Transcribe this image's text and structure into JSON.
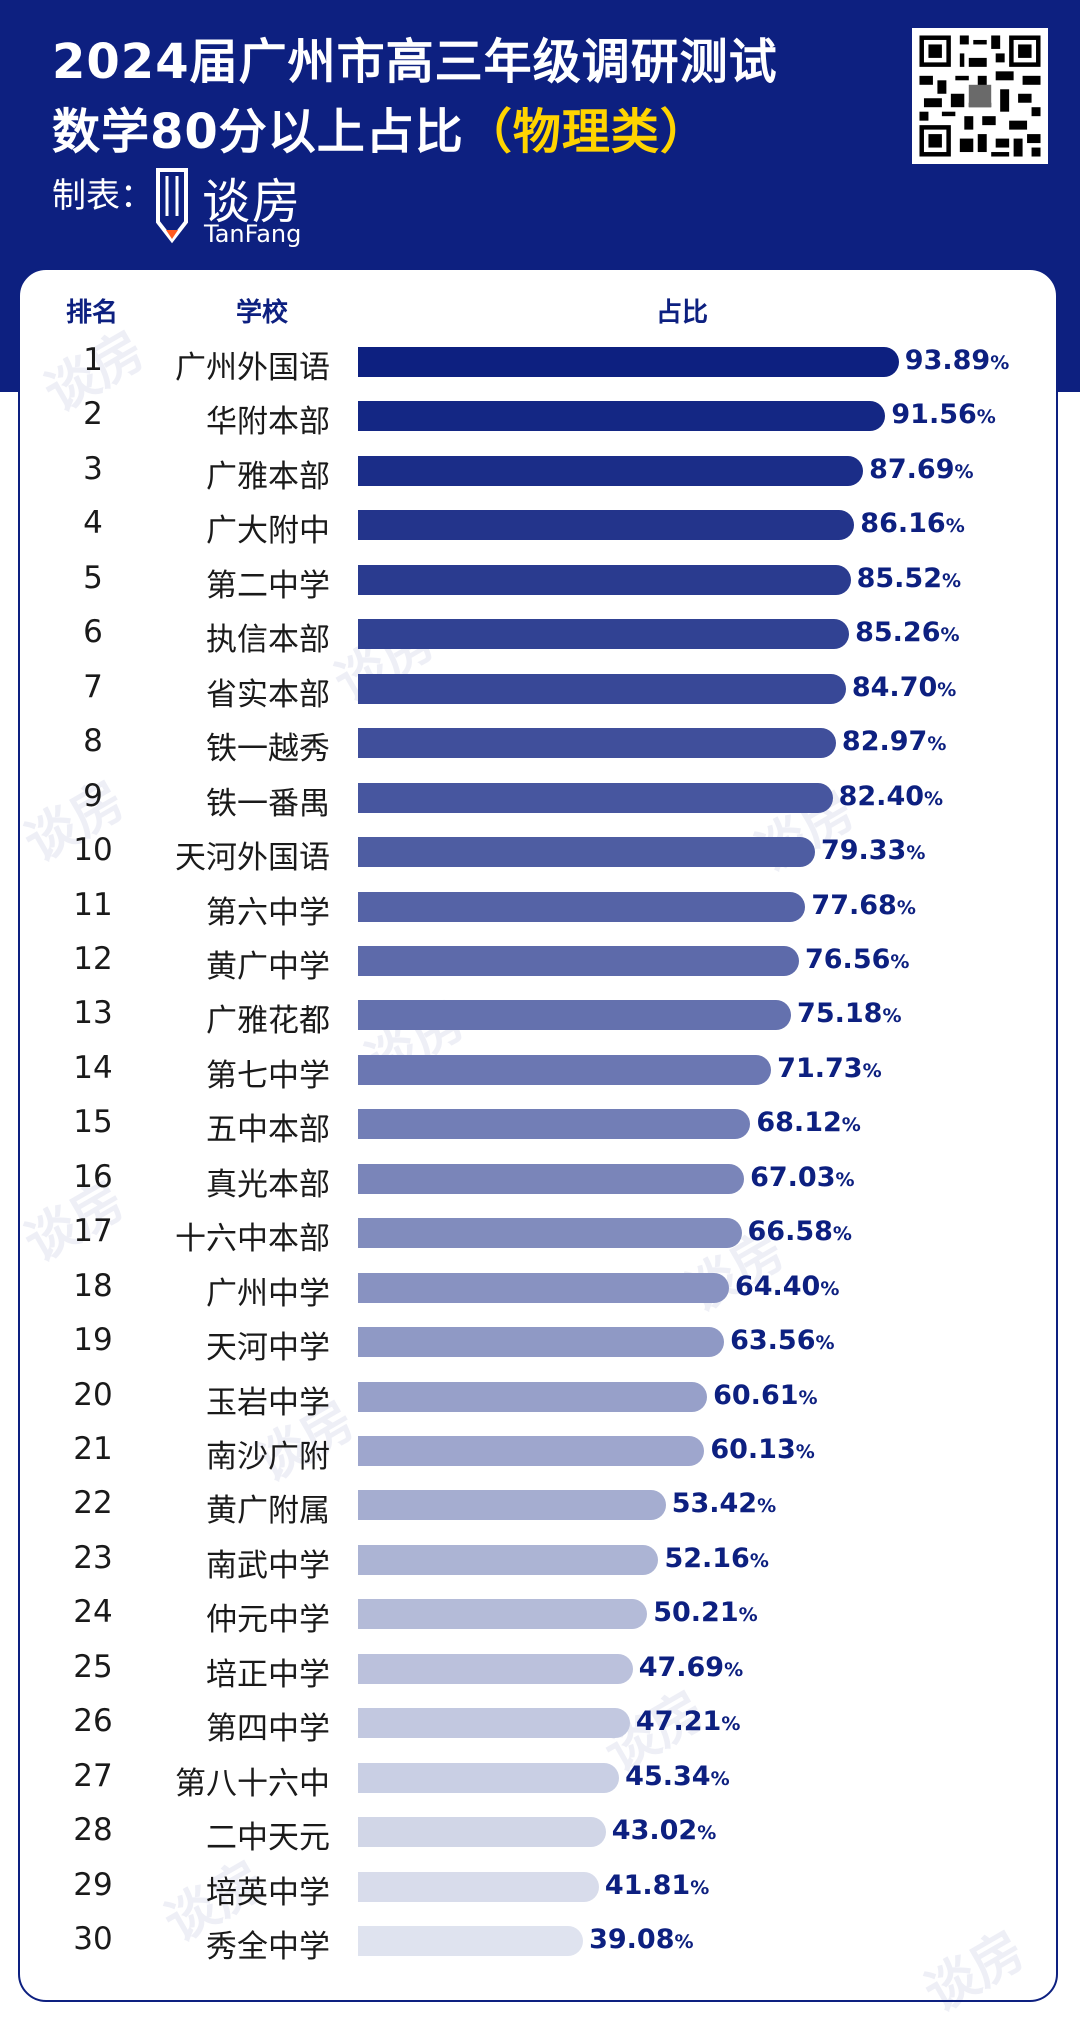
{
  "header": {
    "title_line1": "2024届广州市高三年级调研测试",
    "title_line2": "数学80分以上占比",
    "title_highlight": "（物理类）",
    "maker_label": "制表：",
    "logo_cn": "谈房",
    "logo_en": "TanFang"
  },
  "watermark": "谈房",
  "colors": {
    "header_bg": "#0d2080",
    "highlight": "#ffd400",
    "bar_dark": "#0d2080",
    "bar_light": "#dfe3ef"
  },
  "chart_data": {
    "type": "bar",
    "orientation": "horizontal",
    "columns": [
      "排名",
      "学校",
      "占比"
    ],
    "value_suffix": "%",
    "rows": [
      {
        "rank": "1",
        "school": "广州外国语",
        "value": 93.89
      },
      {
        "rank": "2",
        "school": "华附本部",
        "value": 91.56
      },
      {
        "rank": "3",
        "school": "广雅本部",
        "value": 87.69
      },
      {
        "rank": "4",
        "school": "广大附中",
        "value": 86.16
      },
      {
        "rank": "5",
        "school": "第二中学",
        "value": 85.52
      },
      {
        "rank": "6",
        "school": "执信本部",
        "value": 85.26
      },
      {
        "rank": "7",
        "school": "省实本部",
        "value": 84.7
      },
      {
        "rank": "8",
        "school": "铁一越秀",
        "value": 82.97
      },
      {
        "rank": "9",
        "school": "铁一番禺",
        "value": 82.4
      },
      {
        "rank": "10",
        "school": "天河外国语",
        "value": 79.33
      },
      {
        "rank": "11",
        "school": "第六中学",
        "value": 77.68
      },
      {
        "rank": "12",
        "school": "黄广中学",
        "value": 76.56
      },
      {
        "rank": "13",
        "school": "广雅花都",
        "value": 75.18
      },
      {
        "rank": "14",
        "school": "第七中学",
        "value": 71.73
      },
      {
        "rank": "15",
        "school": "五中本部",
        "value": 68.12
      },
      {
        "rank": "16",
        "school": "真光本部",
        "value": 67.03
      },
      {
        "rank": "17",
        "school": "十六中本部",
        "value": 66.58
      },
      {
        "rank": "18",
        "school": "广州中学",
        "value": 64.4
      },
      {
        "rank": "19",
        "school": "天河中学",
        "value": 63.56
      },
      {
        "rank": "20",
        "school": "玉岩中学",
        "value": 60.61
      },
      {
        "rank": "21",
        "school": "南沙广附",
        "value": 60.13
      },
      {
        "rank": "22",
        "school": "黄广附属",
        "value": 53.42
      },
      {
        "rank": "23",
        "school": "南武中学",
        "value": 52.16
      },
      {
        "rank": "24",
        "school": "仲元中学",
        "value": 50.21
      },
      {
        "rank": "25",
        "school": "培正中学",
        "value": 47.69
      },
      {
        "rank": "26",
        "school": "第四中学",
        "value": 47.21
      },
      {
        "rank": "27",
        "school": "第八十六中",
        "value": 45.34
      },
      {
        "rank": "28",
        "school": "二中天元",
        "value": 43.02
      },
      {
        "rank": "29",
        "school": "培英中学",
        "value": 41.81
      },
      {
        "rank": "30",
        "school": "秀全中学",
        "value": 39.08
      }
    ]
  }
}
